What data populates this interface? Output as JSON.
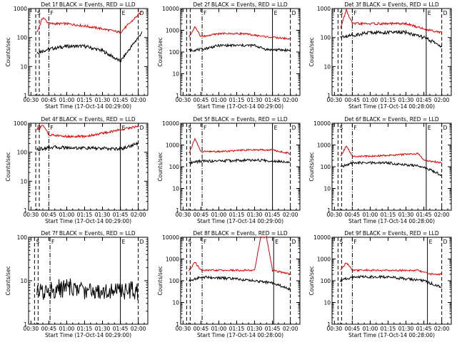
{
  "colors": {
    "events": "#000000",
    "lld": "#e00000"
  },
  "chart_data": [
    {
      "type": "line",
      "title": "Det 1f BLACK = Events, RED = LLD",
      "xlabel": "Start Time (17-Oct-14 00:29:00)",
      "ylabel": "Counts/sec",
      "ylim": [
        1,
        1000
      ],
      "yscale": "log",
      "x_ticks": [
        "00:30",
        "00:45",
        "01:00",
        "01:15",
        "01:30",
        "01:45",
        "02:00"
      ],
      "y_ticks": [
        "1",
        "10",
        "100",
        "1000"
      ],
      "markers": [
        {
          "label": "S",
          "t": "00:34",
          "style": "dashed"
        },
        {
          "label": "F",
          "t": "00:45",
          "style": "dashdot"
        },
        {
          "label": "E",
          "t": "01:45",
          "style": "solid"
        },
        {
          "label": "D",
          "t": "02:00",
          "style": "dashed"
        }
      ],
      "series": [
        {
          "name": "Events",
          "x": [
            "00:35",
            "00:45",
            "01:00",
            "01:15",
            "01:30",
            "01:45",
            "02:03"
          ],
          "values": [
            30,
            40,
            50,
            50,
            35,
            15,
            150
          ]
        },
        {
          "name": "LLD",
          "x": [
            "00:35",
            "00:40",
            "00:45",
            "01:00",
            "01:15",
            "01:30",
            "01:45",
            "02:03"
          ],
          "values": [
            150,
            500,
            300,
            300,
            250,
            200,
            150,
            800
          ]
        }
      ]
    },
    {
      "type": "line",
      "title": "Det 2f BLACK = Events, RED = LLD",
      "xlabel": "Start Time (17-Oct-14 00:29:00)",
      "ylabel": "Counts/sec",
      "ylim": [
        1,
        10000
      ],
      "yscale": "log",
      "x_ticks": [
        "00:30",
        "00:45",
        "01:00",
        "01:15",
        "01:30",
        "01:45",
        "02:00"
      ],
      "y_ticks": [
        "1",
        "10",
        "100",
        "1000",
        "10000"
      ],
      "markers": [
        {
          "label": "",
          "t": "00:33",
          "style": "dashed"
        },
        {
          "label": "F",
          "t": "00:46",
          "style": "dashdot"
        },
        {
          "label": "E",
          "t": "01:45",
          "style": "solid"
        },
        {
          "label": "D",
          "t": "02:00",
          "style": "dashed"
        }
      ],
      "series": [
        {
          "name": "Events",
          "x": [
            "00:35",
            "00:45",
            "01:00",
            "01:30",
            "01:40",
            "02:00"
          ],
          "values": [
            120,
            130,
            200,
            200,
            130,
            120
          ]
        },
        {
          "name": "LLD",
          "x": [
            "00:35",
            "00:40",
            "00:45",
            "01:00",
            "01:20",
            "01:40",
            "02:00"
          ],
          "values": [
            500,
            1500,
            500,
            700,
            700,
            500,
            400
          ]
        }
      ]
    },
    {
      "type": "line",
      "title": "Det 3f BLACK = Events, RED = LLD",
      "xlabel": "Start Time (17-Oct-14 00:28:00)",
      "ylabel": "Counts/sec",
      "ylim": [
        1,
        1000
      ],
      "yscale": "log",
      "x_ticks": [
        "00:30",
        "00:45",
        "01:00",
        "01:15",
        "01:30",
        "01:45",
        "02:00"
      ],
      "y_ticks": [
        "1",
        "10",
        "100",
        "1000"
      ],
      "markers": [
        {
          "label": "S",
          "t": "00:33",
          "style": "dashed"
        },
        {
          "label": "F",
          "t": "00:45",
          "style": "dashdot"
        },
        {
          "label": "E",
          "t": "01:47",
          "style": "solid"
        },
        {
          "label": "D",
          "t": "02:00",
          "style": "dashed"
        }
      ],
      "series": [
        {
          "name": "Events",
          "x": [
            "00:35",
            "00:45",
            "01:00",
            "01:30",
            "01:45",
            "02:00"
          ],
          "values": [
            100,
            120,
            150,
            150,
            100,
            50
          ]
        },
        {
          "name": "LLD",
          "x": [
            "00:35",
            "00:40",
            "00:45",
            "01:00",
            "01:30",
            "01:45",
            "02:00"
          ],
          "values": [
            200,
            900,
            300,
            300,
            300,
            200,
            150
          ]
        }
      ]
    },
    {
      "type": "line",
      "title": "Det 4f BLACK = Events, RED = LLD",
      "xlabel": "Start Time (17-Oct-14 00:29:00)",
      "ylabel": "Counts/sec",
      "ylim": [
        1,
        1000
      ],
      "yscale": "log",
      "x_ticks": [
        "00:30",
        "00:45",
        "01:00",
        "01:15",
        "01:30",
        "01:45",
        "02:00"
      ],
      "y_ticks": [
        "1",
        "10",
        "100",
        "1000"
      ],
      "markers": [
        {
          "label": "S",
          "t": "00:34",
          "style": "dashed"
        },
        {
          "label": "F",
          "t": "00:45",
          "style": "dashdot"
        },
        {
          "label": "E",
          "t": "01:45",
          "style": "solid"
        },
        {
          "label": "D",
          "t": "02:00",
          "style": "dashed"
        }
      ],
      "series": [
        {
          "name": "Events",
          "x": [
            "00:35",
            "00:45",
            "01:45",
            "02:00"
          ],
          "values": [
            120,
            150,
            130,
            200
          ]
        },
        {
          "name": "LLD",
          "x": [
            "00:35",
            "00:40",
            "00:45",
            "01:00",
            "01:15",
            "01:30",
            "01:45",
            "02:00"
          ],
          "values": [
            600,
            900,
            400,
            350,
            350,
            450,
            600,
            800
          ]
        }
      ]
    },
    {
      "type": "line",
      "title": "Det 5f BLACK = Events, RED = LLD",
      "xlabel": "Start Time (17-Oct-14 00:29:00)",
      "ylabel": "Counts/sec",
      "ylim": [
        1,
        10000
      ],
      "yscale": "log",
      "x_ticks": [
        "00:30",
        "00:45",
        "01:00",
        "01:15",
        "01:30",
        "01:45",
        "02:00"
      ],
      "y_ticks": [
        "1",
        "10",
        "100",
        "1000",
        "10000"
      ],
      "markers": [
        {
          "label": "S",
          "t": "00:33",
          "style": "dashed"
        },
        {
          "label": "F",
          "t": "00:46",
          "style": "dashdot"
        },
        {
          "label": "E",
          "t": "01:45",
          "style": "solid"
        },
        {
          "label": "D",
          "t": "02:00",
          "style": "dashed"
        }
      ],
      "series": [
        {
          "name": "Events",
          "x": [
            "00:35",
            "00:45",
            "01:30",
            "02:00"
          ],
          "values": [
            150,
            180,
            200,
            170
          ]
        },
        {
          "name": "LLD",
          "x": [
            "00:35",
            "00:40",
            "00:45",
            "01:00",
            "01:30",
            "01:45",
            "02:00"
          ],
          "values": [
            400,
            2000,
            500,
            500,
            600,
            600,
            400
          ]
        }
      ]
    },
    {
      "type": "line",
      "title": "Det 6f BLACK = Events, RED = LLD",
      "xlabel": "Start Time (17-Oct-14 00:28:00)",
      "ylabel": "Counts/sec",
      "ylim": [
        1,
        10000
      ],
      "yscale": "log",
      "x_ticks": [
        "00:30",
        "00:45",
        "01:00",
        "01:15",
        "01:30",
        "01:45",
        "02:00"
      ],
      "y_ticks": [
        "1",
        "10",
        "100",
        "1000",
        "10000"
      ],
      "markers": [
        {
          "label": "S",
          "t": "00:33",
          "style": "dashed"
        },
        {
          "label": "F",
          "t": "00:45",
          "style": "dashdot"
        },
        {
          "label": "E",
          "t": "01:47",
          "style": "solid"
        },
        {
          "label": "D",
          "t": "02:00",
          "style": "dashed"
        }
      ],
      "series": [
        {
          "name": "Events",
          "x": [
            "00:35",
            "00:45",
            "01:15",
            "01:45",
            "02:00"
          ],
          "values": [
            100,
            150,
            150,
            100,
            40
          ]
        },
        {
          "name": "LLD",
          "x": [
            "00:35",
            "00:40",
            "00:45",
            "01:00",
            "01:40",
            "01:45",
            "02:00"
          ],
          "values": [
            300,
            900,
            300,
            300,
            400,
            200,
            150
          ]
        }
      ]
    },
    {
      "type": "line",
      "title": "Det 7f BLACK = Events, RED = LLD",
      "xlabel": "Start Time (17-Oct-14 00:29:00)",
      "ylabel": "Counts/sec",
      "ylim": [
        1,
        100
      ],
      "yscale": "log",
      "x_ticks": [
        "00:30",
        "00:45",
        "01:00",
        "01:15",
        "01:30",
        "01:45",
        "02:00"
      ],
      "y_ticks": [
        "1",
        "10",
        "100"
      ],
      "markers": [
        {
          "label": "S",
          "t": "00:33",
          "style": "dashed"
        },
        {
          "label": "F",
          "t": "00:46",
          "style": "dashdot"
        },
        {
          "label": "E",
          "t": "01:45",
          "style": "solid"
        },
        {
          "label": "D",
          "t": "02:00",
          "style": "dashed"
        }
      ],
      "series": [
        {
          "name": "Events",
          "x": [
            "00:35",
            "00:45",
            "01:00",
            "01:15",
            "01:30",
            "01:45",
            "02:00"
          ],
          "values": [
            5,
            6,
            7,
            6,
            6,
            6,
            6
          ]
        }
      ]
    },
    {
      "type": "line",
      "title": "Det 8f BLACK = Events, RED = LLD",
      "xlabel": "Start Time (17-Oct-14 00:28:00)",
      "ylabel": "Counts/sec",
      "ylim": [
        1,
        10000
      ],
      "yscale": "log",
      "x_ticks": [
        "00:30",
        "00:45",
        "01:00",
        "01:15",
        "01:30",
        "01:45",
        "02:00"
      ],
      "y_ticks": [
        "1",
        "10",
        "100",
        "1000",
        "10000"
      ],
      "markers": [
        {
          "label": "S",
          "t": "00:33",
          "style": "dashed"
        },
        {
          "label": "F",
          "t": "00:46",
          "style": "dashdot"
        },
        {
          "label": "E",
          "t": "01:46",
          "style": "solid"
        },
        {
          "label": "D",
          "t": "02:00",
          "style": "dashed"
        }
      ],
      "series": [
        {
          "name": "Events",
          "x": [
            "00:35",
            "00:45",
            "01:15",
            "01:45",
            "02:00"
          ],
          "values": [
            100,
            150,
            120,
            80,
            40
          ]
        },
        {
          "name": "LLD",
          "x": [
            "00:35",
            "00:40",
            "00:45",
            "01:30",
            "01:35",
            "01:40",
            "01:45",
            "02:00"
          ],
          "values": [
            300,
            700,
            300,
            300,
            10000,
            10000,
            300,
            200
          ]
        }
      ]
    },
    {
      "type": "line",
      "title": "Det 9f BLACK = Events, RED = LLD",
      "xlabel": "Start Time (17-Oct-14 00:28:00)",
      "ylabel": "Counts/sec",
      "ylim": [
        1,
        10000
      ],
      "yscale": "log",
      "x_ticks": [
        "00:30",
        "00:45",
        "01:00",
        "01:15",
        "01:30",
        "01:45",
        "02:00"
      ],
      "y_ticks": [
        "1",
        "10",
        "100",
        "1000",
        "10000"
      ],
      "markers": [
        {
          "label": "S",
          "t": "00:33",
          "style": "dashed"
        },
        {
          "label": "F",
          "t": "00:45",
          "style": "dashdot"
        },
        {
          "label": "E",
          "t": "01:48",
          "style": "solid"
        },
        {
          "label": "D",
          "t": "02:00",
          "style": "dashed"
        }
      ],
      "series": [
        {
          "name": "Events",
          "x": [
            "00:35",
            "00:45",
            "01:15",
            "01:45",
            "02:00"
          ],
          "values": [
            100,
            150,
            150,
            100,
            50
          ]
        },
        {
          "name": "LLD",
          "x": [
            "00:35",
            "00:40",
            "00:45",
            "01:00",
            "01:40",
            "01:50",
            "02:00"
          ],
          "values": [
            300,
            700,
            300,
            300,
            300,
            200,
            200
          ]
        }
      ]
    }
  ]
}
